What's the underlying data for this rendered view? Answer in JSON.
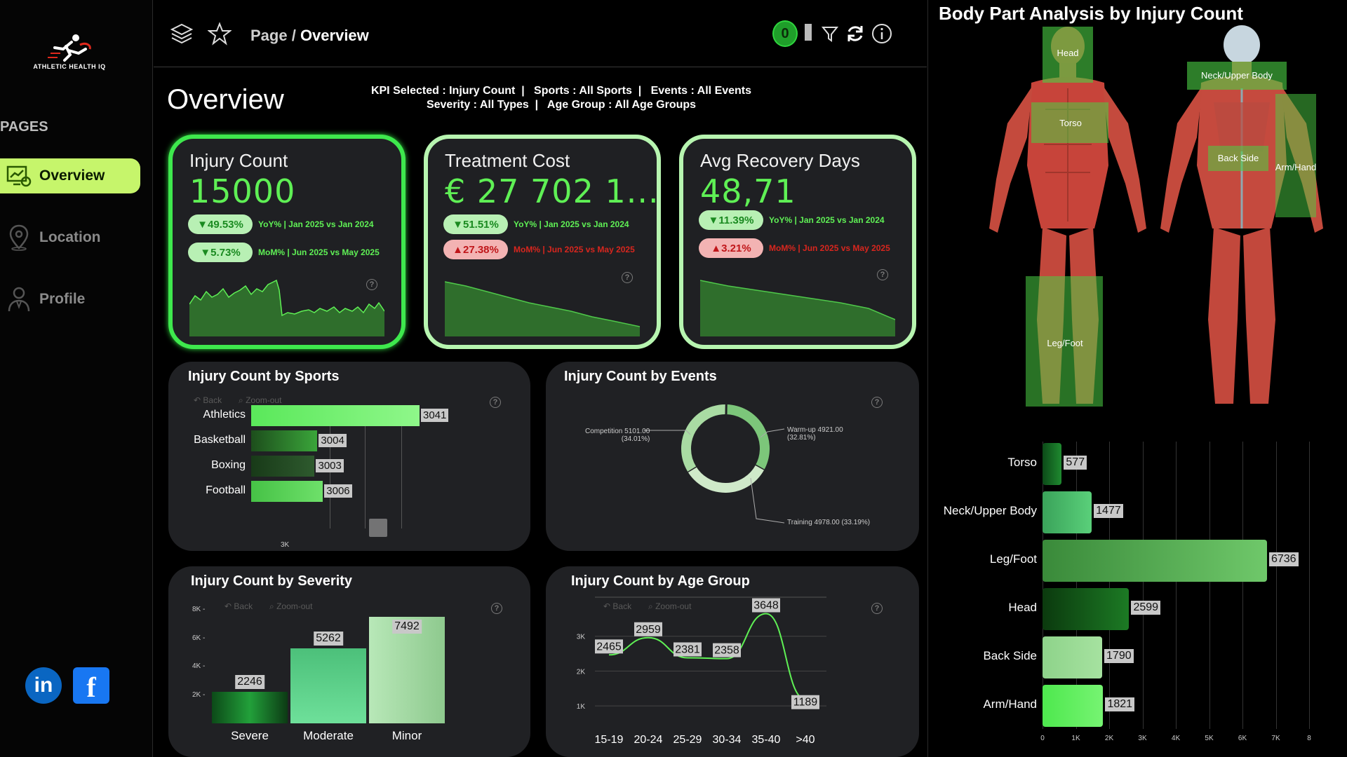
{
  "sidebar": {
    "logo_text": "ATHLETIC HEALTH IQ",
    "pages_heading": "PAGES",
    "items": [
      {
        "label": "Overview",
        "icon": "overview-icon",
        "active": true
      },
      {
        "label": "Location",
        "icon": "location-pin-icon",
        "active": false
      },
      {
        "label": "Profile",
        "icon": "profile-icon",
        "active": false
      }
    ],
    "social": {
      "linkedin": "in",
      "facebook": "f"
    }
  },
  "topbar": {
    "breadcrumb_parent": "Page",
    "breadcrumb_sep": " / ",
    "breadcrumb_current": "Overview",
    "filter_count": "0"
  },
  "header": {
    "title": "Overview",
    "filters_line1": "KPI Selected : Injury Count  |   Sports : All Sports  |   Events : All Events",
    "filters_line2": "Severity : All Types  |   Age Group : All Age Groups"
  },
  "kpis": [
    {
      "title": "Injury Count",
      "value": "15000",
      "yoy_pill": "▼49.53%",
      "yoy_text": "YoY% | Jan 2025 vs Jan 2024",
      "mom_pill": "▼5.73%",
      "mom_text": "MoM% | Jun 2025 vs May 2025",
      "mom_good": true
    },
    {
      "title": "Treatment Cost",
      "value": "€ 27 702 1...",
      "yoy_pill": "▼51.51%",
      "yoy_text": "YoY% | Jan 2025 vs Jan 2024",
      "mom_pill": "▲27.38%",
      "mom_text": "MoM% | Jun 2025 vs May 2025",
      "mom_good": false
    },
    {
      "title": "Avg Recovery Days",
      "value": "48,71",
      "yoy_pill": "▼11.39%",
      "yoy_text": "YoY% | Jan 2025 vs Jan 2024",
      "mom_pill": "▲3.21%",
      "mom_text": "MoM% | Jun 2025 vs May 2025",
      "mom_good": false
    }
  ],
  "controls": {
    "back": "Back",
    "zoom_out": "Zoom-out"
  },
  "sports_panel": {
    "title": "Injury Count by Sports",
    "axis_tick": "3K",
    "chart_data": {
      "type": "bar",
      "orientation": "horizontal",
      "categories": [
        "Athletics",
        "Basketball",
        "Boxing",
        "Football"
      ],
      "values": [
        3041,
        3004,
        3003,
        3006
      ],
      "labels": [
        "3041",
        "3004",
        "3003",
        "3006"
      ]
    }
  },
  "events_panel": {
    "title": "Injury Count by Events",
    "chart_data": {
      "type": "pie",
      "variant": "donut",
      "slices": [
        {
          "name": "Competition",
          "value": 5101.0,
          "pct": 34.01,
          "label": "Competition 5101.00",
          "pct_label": "(34.01%)"
        },
        {
          "name": "Warm-up",
          "value": 4921.0,
          "pct": 32.81,
          "label": "Warm-up 4921.00",
          "pct_label": "(32.81%)"
        },
        {
          "name": "Training",
          "value": 4978.0,
          "pct": 33.19,
          "label": "Training 4978.00 (33.19%)",
          "pct_label": ""
        }
      ]
    }
  },
  "severity_panel": {
    "title": "Injury Count by Severity",
    "chart_data": {
      "type": "bar",
      "categories": [
        "Severe",
        "Moderate",
        "Minor"
      ],
      "values": [
        2246,
        5262,
        7492
      ],
      "labels": [
        "2246",
        "5262",
        "7492"
      ],
      "yticks": [
        "8K",
        "6K",
        "4K",
        "2K"
      ],
      "ylim": [
        0,
        8000
      ]
    }
  },
  "age_panel": {
    "title": "Injury Count by Age Group",
    "chart_data": {
      "type": "line",
      "categories": [
        "15-19",
        "20-24",
        "25-29",
        "30-34",
        "35-40",
        ">40"
      ],
      "values": [
        2465,
        2959,
        2381,
        2358,
        3648,
        1189
      ],
      "labels": [
        "2465",
        "2959",
        "2381",
        "2358",
        "3648",
        "1189"
      ],
      "yticks": [
        "3K",
        "2K",
        "1K"
      ],
      "ylim": [
        500,
        4000
      ]
    }
  },
  "body_panel": {
    "title": "Body Part Analysis by Injury Count",
    "regions": [
      "Head",
      "Torso",
      "Leg/Foot",
      "Neck/Upper Body",
      "Back Side",
      "Arm/Hand"
    ],
    "chart_data": {
      "type": "bar",
      "orientation": "horizontal",
      "categories": [
        "Torso",
        "Neck/Upper Body",
        "Leg/Foot",
        "Head",
        "Back Side",
        "Arm/Hand"
      ],
      "values": [
        577,
        1477,
        6736,
        2599,
        1790,
        1821
      ],
      "labels": [
        "577",
        "1477",
        "6736",
        "2599",
        "1790",
        "1821"
      ],
      "xticks": [
        "0",
        "1K",
        "2K",
        "3K",
        "4K",
        "5K",
        "6K",
        "7K",
        "8"
      ],
      "xlim": [
        0,
        8000
      ]
    }
  }
}
